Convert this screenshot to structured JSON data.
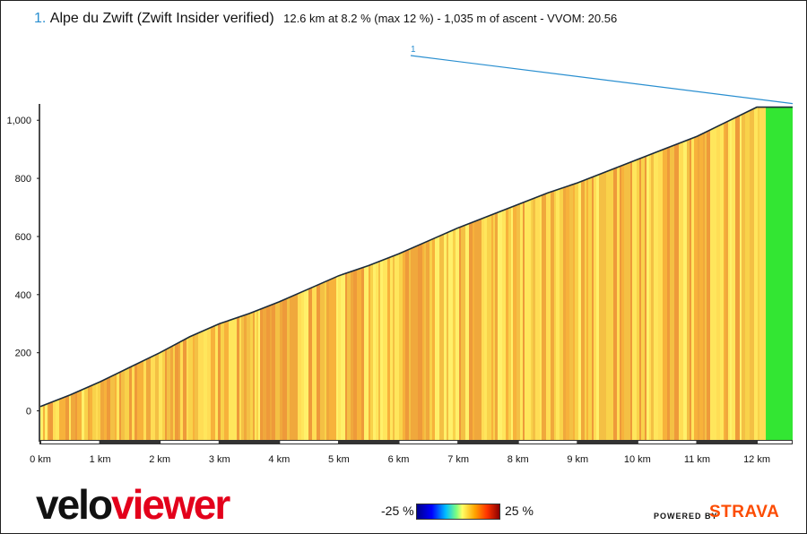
{
  "header": {
    "segment_number": "1.",
    "segment_name": "Alpe du Zwift (Zwift Insider verified)",
    "segment_stats": "12.6 km at 8.2 % (max 12 %) - 1,035 m of ascent - VVOM: 20.56"
  },
  "chart_data": {
    "type": "area",
    "title": "Alpe du Zwift (Zwift Insider verified)",
    "xlabel": "",
    "ylabel": "",
    "xlim": [
      0,
      12.6
    ],
    "ylim": [
      -100,
      1050
    ],
    "y_ticks": [
      0,
      200,
      400,
      600,
      800,
      1000
    ],
    "y_tick_labels": [
      "0",
      "200",
      "400",
      "600",
      "800",
      "1,000"
    ],
    "x_ticks": [
      0,
      1,
      2,
      3,
      4,
      5,
      6,
      7,
      8,
      9,
      10,
      11,
      12
    ],
    "x_tick_labels": [
      "0 km",
      "1 km",
      "2 km",
      "3 km",
      "4 km",
      "5 km",
      "6 km",
      "7 km",
      "8 km",
      "9 km",
      "10 km",
      "11 km",
      "12 km"
    ],
    "series": [
      {
        "x": [
          0,
          0.5,
          1,
          1.5,
          2,
          2.5,
          3,
          3.5,
          4,
          4.5,
          5,
          5.5,
          6,
          6.5,
          7,
          7.5,
          8,
          8.5,
          9,
          9.5,
          10,
          10.5,
          11,
          11.5,
          12,
          12.6
        ],
        "y": [
          15,
          55,
          100,
          150,
          200,
          255,
          300,
          335,
          375,
          420,
          465,
          500,
          540,
          585,
          630,
          670,
          710,
          750,
          785,
          825,
          865,
          905,
          945,
          995,
          1045,
          1045
        ]
      }
    ],
    "grade_color_bands": [
      "#ffe65c",
      "#f7b23b",
      "#f9d24a",
      "#ee9a3a",
      "#fff06a",
      "#f4c044",
      "#ffdd55",
      "#f0a83c"
    ],
    "finish_segment": {
      "from_km": 12.15,
      "to_km": 12.6,
      "color": "#33e633"
    },
    "annotation": {
      "label": "1",
      "color": "#2a8fd0"
    },
    "grade_legend": {
      "min_label": "-25 %",
      "max_label": "25 %"
    }
  },
  "branding": {
    "logo_part1": "velo",
    "logo_part2": "viewer",
    "powered_by": "POWERED BY",
    "strava": "STRAVA"
  }
}
